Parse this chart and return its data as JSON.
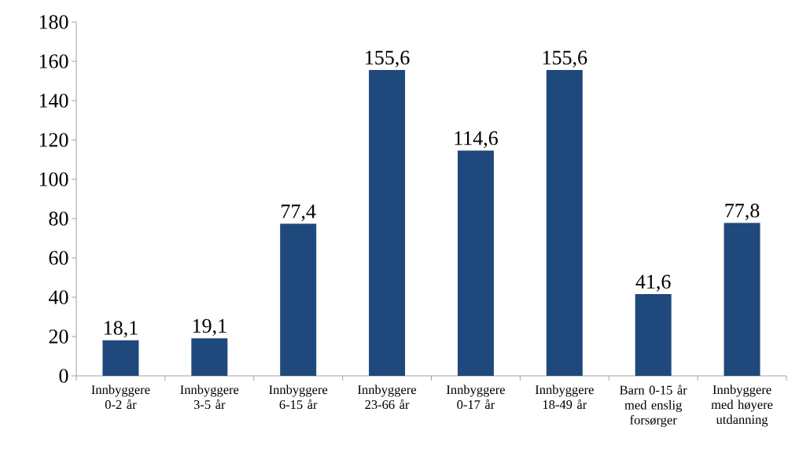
{
  "chart_data": {
    "type": "bar",
    "categories": [
      "Innbyggere 0-2 år",
      "Innbyggere 3-5 år",
      "Innbyggere 6-15 år",
      "Innbyggere 23-66 år",
      "Innbyggere 0-17 år",
      "Innbyggere 18-49 år",
      "Barn 0-15 år med enslig forsørger",
      "Innbyggere med høyere utdanning"
    ],
    "values": [
      18.1,
      19.1,
      77.4,
      155.6,
      114.6,
      155.6,
      41.6,
      77.8
    ],
    "color": "#1f497d",
    "ylim": [
      0,
      180
    ],
    "yticks": [
      0,
      20,
      40,
      60,
      80,
      100,
      120,
      140,
      160,
      180
    ],
    "value_labels": [
      "18,1",
      "19,1",
      "77,4",
      "155,6",
      "114,6",
      "155,6",
      "41,6",
      "77,8"
    ],
    "grid": false
  }
}
